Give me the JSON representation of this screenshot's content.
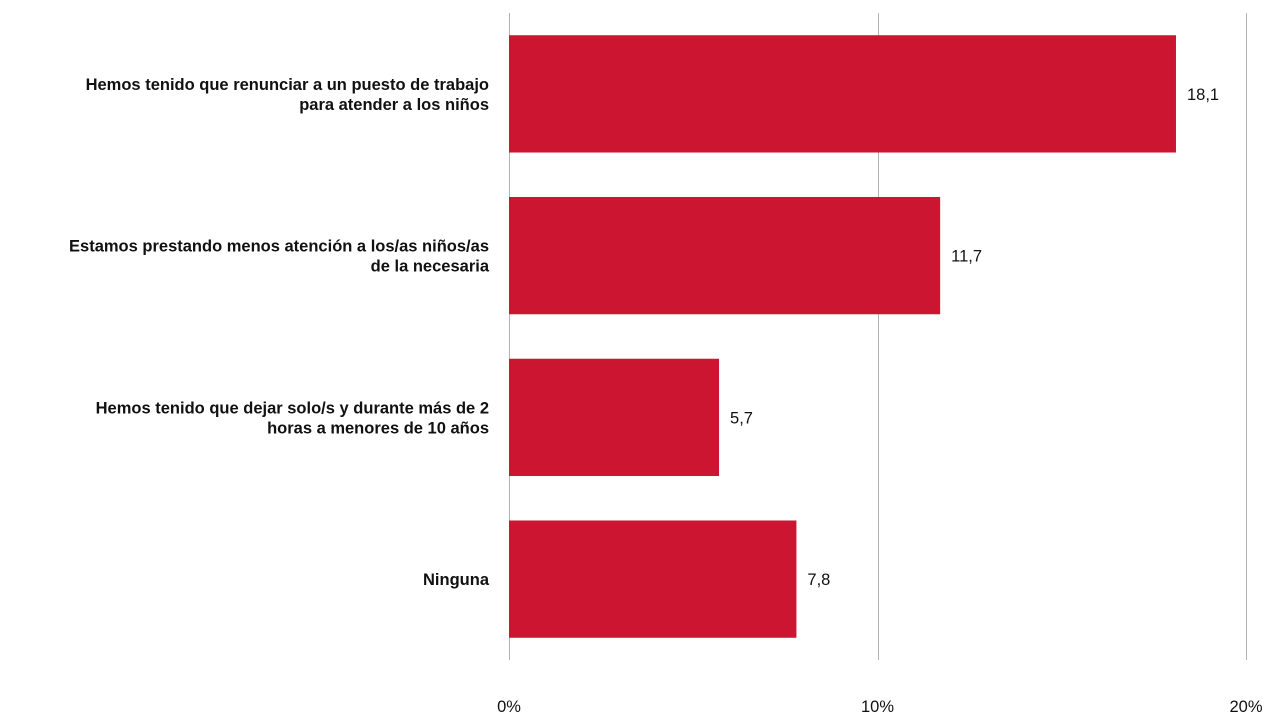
{
  "chart_data": {
    "type": "bar",
    "orientation": "horizontal",
    "title": "",
    "xlabel": "",
    "ylabel": "",
    "categories": [
      [
        "Hemos tenido que renunciar a un puesto de trabajo",
        "para atender a los niños"
      ],
      [
        "Estamos prestando menos atención a los/as niños/as",
        "de la necesaria"
      ],
      [
        "Hemos tenido que dejar solo/s y durante más de 2",
        "horas a menores de 10 años"
      ],
      [
        "Ninguna"
      ]
    ],
    "values": [
      18.1,
      11.7,
      5.7,
      7.8
    ],
    "value_labels": [
      "18,1",
      "11,7",
      "5,7",
      "7,8"
    ],
    "xlim": [
      0,
      20
    ],
    "ticks": [
      0,
      10,
      20
    ],
    "tick_labels": [
      "0%",
      "10%",
      "20%"
    ],
    "grid": "vertical",
    "legend": "none",
    "colors": {
      "bar": "#cc1530",
      "grid": "#b3b3b3",
      "text": "#111111"
    }
  }
}
